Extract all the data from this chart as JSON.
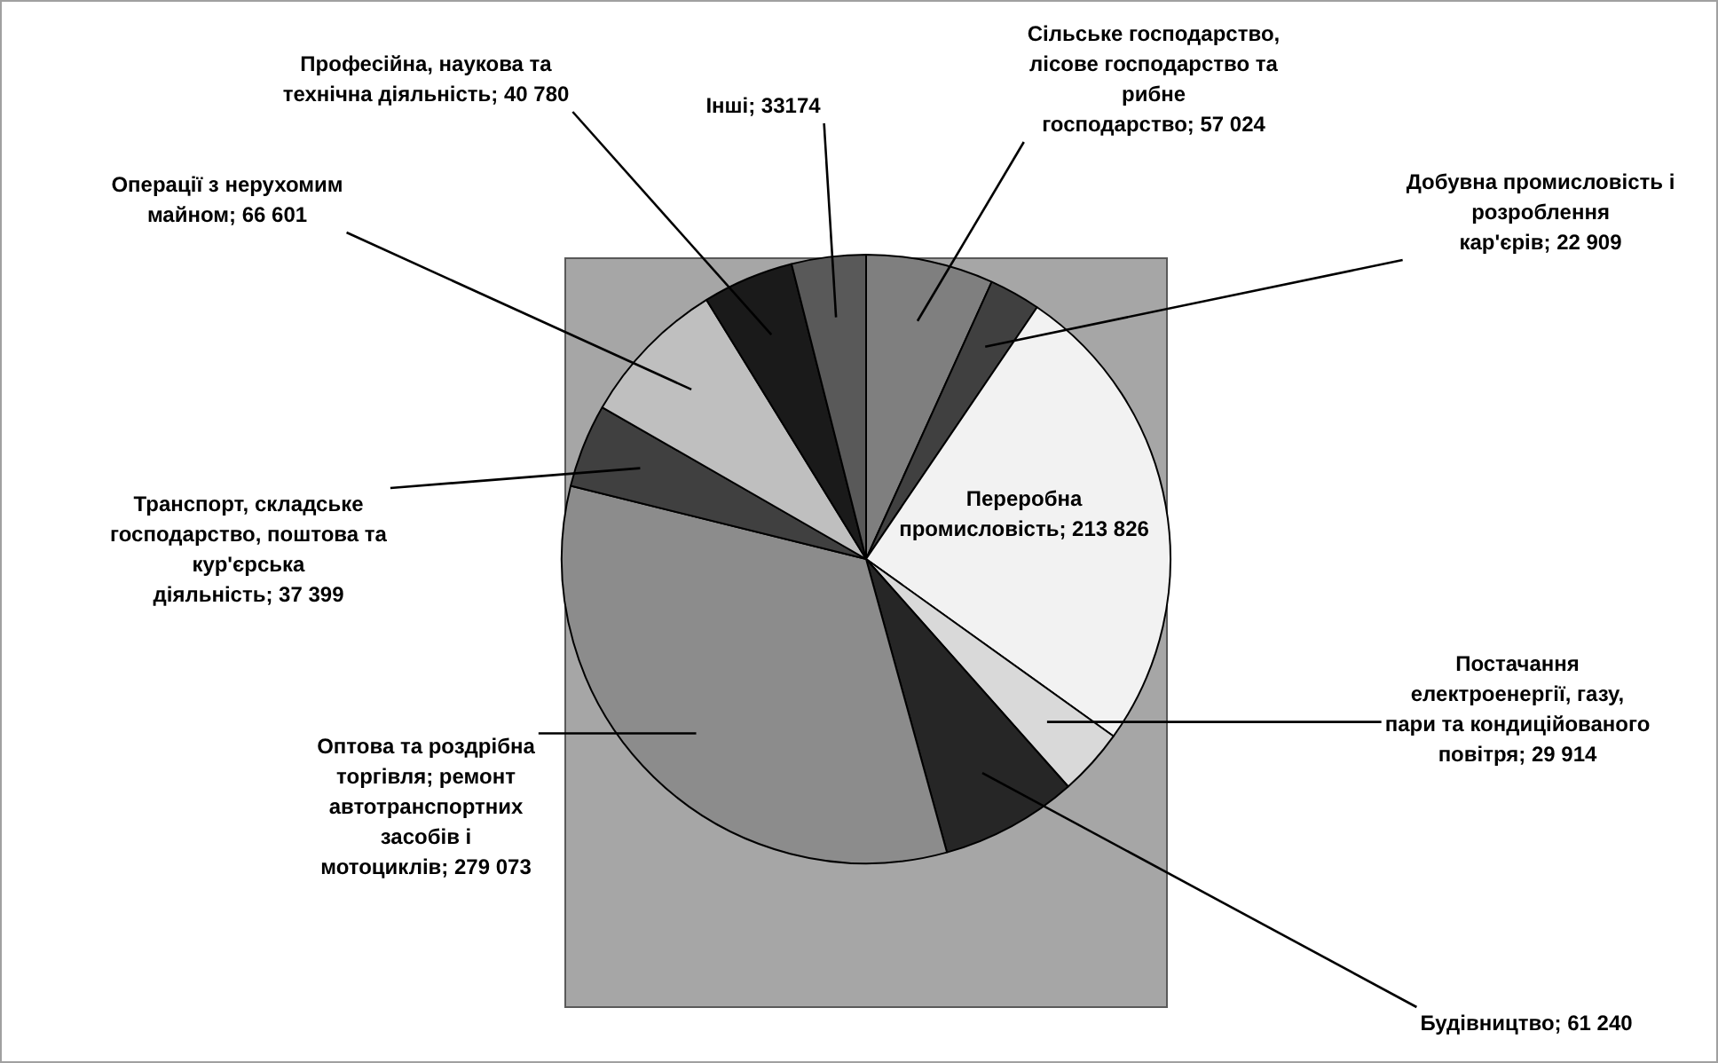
{
  "chart_data": {
    "type": "pie",
    "categories": [
      "Сільське господарство, лісове господарство та рибне господарство",
      "Добувна промисловість і розроблення кар'єрів",
      "Переробна промисловість",
      "Постачання електроенергії, газу, пари та кондиційованого повітря",
      "Будівництво",
      "Оптова та роздрібна торгівля; ремонт автотранспортних засобів і мотоциклів",
      "Транспорт, складське господарство, поштова та кур'єрська діяльність",
      "Операції з нерухомим майном",
      "Професійна, наукова та технічна діяльність",
      "Інші"
    ],
    "values": [
      57024,
      22909,
      213826,
      29914,
      61240,
      279073,
      37399,
      66601,
      40780,
      33174
    ],
    "value_labels": [
      "57 024",
      "22 909",
      "213 826",
      "29 914",
      "61 240",
      "279 073",
      "37 399",
      "66 601",
      "40 780",
      "33174"
    ],
    "colors": [
      "#7f7f7f",
      "#404040",
      "#f2f2f2",
      "#d9d9d9",
      "#262626",
      "#8c8c8c",
      "#404040",
      "#bfbfbf",
      "#1a1a1a",
      "#595959"
    ],
    "legend": false
  }
}
